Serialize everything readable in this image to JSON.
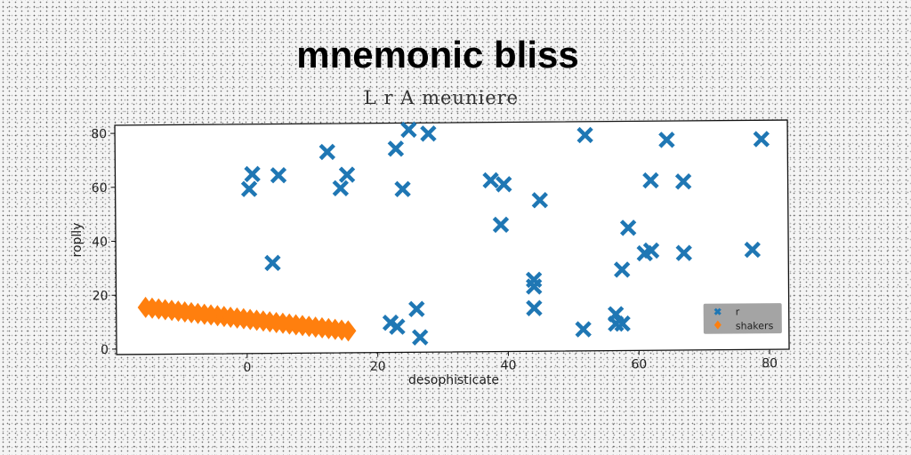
{
  "chart_data": {
    "type": "scatter",
    "title": "mnemonic bliss",
    "subtitle": "L r A meuniere",
    "xlabel": "desophisticate",
    "ylabel": "roplly",
    "xlim": [
      -20,
      83
    ],
    "ylim": [
      -2,
      83
    ],
    "xticks": [
      0,
      20,
      40,
      60,
      80
    ],
    "yticks": [
      0,
      20,
      40,
      60,
      80
    ],
    "grid": false,
    "legend_position": "bottom-right",
    "series": [
      {
        "name": "r",
        "marker": "x",
        "color": "#1f77b4",
        "points": [
          [
            0.5,
            59
          ],
          [
            1,
            64.5
          ],
          [
            4,
            31.5
          ],
          [
            5,
            64
          ],
          [
            12.5,
            72.5
          ],
          [
            14.5,
            59
          ],
          [
            15.5,
            64
          ],
          [
            22,
            9
          ],
          [
            23,
            73.5
          ],
          [
            24,
            58.5
          ],
          [
            23,
            7.5
          ],
          [
            25,
            80.5
          ],
          [
            26,
            14
          ],
          [
            26.5,
            3.5
          ],
          [
            28,
            79
          ],
          [
            37.5,
            61.5
          ],
          [
            39,
            45
          ],
          [
            39.5,
            60
          ],
          [
            44,
            22
          ],
          [
            44,
            24.5
          ],
          [
            44,
            14
          ],
          [
            45,
            54
          ],
          [
            51.5,
            6
          ],
          [
            52,
            78
          ],
          [
            56.5,
            11.5
          ],
          [
            56.5,
            8
          ],
          [
            57.5,
            8
          ],
          [
            57.5,
            28
          ],
          [
            58.5,
            43.5
          ],
          [
            61,
            34
          ],
          [
            62,
            61
          ],
          [
            62,
            35
          ],
          [
            64.5,
            76
          ],
          [
            67,
            60.5
          ],
          [
            67,
            34
          ],
          [
            77.5,
            35
          ],
          [
            79,
            76
          ]
        ]
      },
      {
        "name": "shakers",
        "marker": "diamond",
        "color": "#ff7f0e",
        "points": [
          [
            -15.5,
            15.4
          ],
          [
            -14.5,
            15.1
          ],
          [
            -13.5,
            14.8
          ],
          [
            -12.5,
            14.5
          ],
          [
            -11.5,
            14.2
          ],
          [
            -10.5,
            13.9
          ],
          [
            -9.5,
            13.6
          ],
          [
            -8.5,
            13.3
          ],
          [
            -7.5,
            13.0
          ],
          [
            -6.5,
            12.7
          ],
          [
            -5.5,
            12.4
          ],
          [
            -4.5,
            12.1
          ],
          [
            -3.5,
            11.8
          ],
          [
            -2.5,
            11.5
          ],
          [
            -1.5,
            11.2
          ],
          [
            -0.5,
            10.9
          ],
          [
            0.5,
            10.6
          ],
          [
            1.5,
            10.3
          ],
          [
            2.5,
            10.0
          ],
          [
            3.5,
            9.7
          ],
          [
            4.5,
            9.4
          ],
          [
            5.5,
            9.1
          ],
          [
            6.5,
            8.8
          ],
          [
            7.5,
            8.5
          ],
          [
            8.5,
            8.2
          ],
          [
            9.5,
            7.9
          ],
          [
            10.5,
            7.6
          ],
          [
            11.5,
            7.3
          ],
          [
            12.5,
            7.0
          ],
          [
            13.5,
            6.7
          ],
          [
            14.5,
            6.4
          ],
          [
            15.5,
            6.1
          ]
        ]
      }
    ]
  }
}
